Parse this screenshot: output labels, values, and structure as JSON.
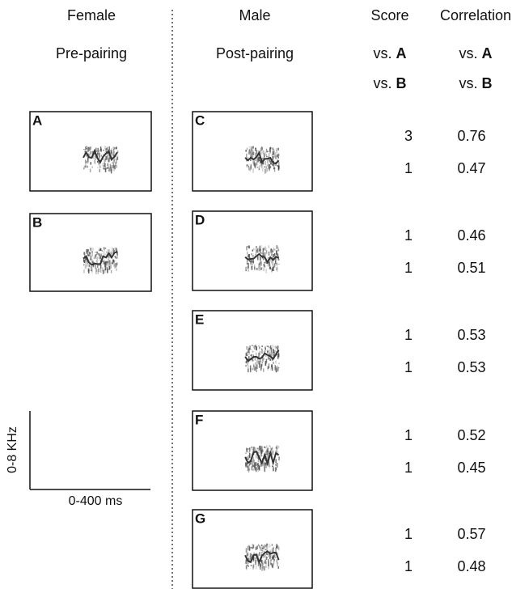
{
  "columns": {
    "female": {
      "title": "Female",
      "subtitle": "Pre-pairing"
    },
    "male": {
      "title": "Male",
      "subtitle": "Post-pairing"
    },
    "score": {
      "title": "Score",
      "rows": [
        {
          "prefix": "vs.",
          "target": "A"
        },
        {
          "prefix": "vs.",
          "target": "B"
        }
      ]
    },
    "correlation": {
      "title": "Correlation",
      "rows": [
        {
          "prefix": "vs.",
          "target": "A"
        },
        {
          "prefix": "vs.",
          "target": "B"
        }
      ]
    }
  },
  "female_panels": [
    {
      "label": "A"
    },
    {
      "label": "B"
    }
  ],
  "male_panels": [
    {
      "label": "C",
      "score_vs_a": 3,
      "score_vs_b": 1,
      "correlation_vs_a": 0.76,
      "correlation_vs_b": 0.47
    },
    {
      "label": "D",
      "score_vs_a": 1,
      "score_vs_b": 1,
      "correlation_vs_a": 0.46,
      "correlation_vs_b": 0.51
    },
    {
      "label": "E",
      "score_vs_a": 1,
      "score_vs_b": 1,
      "correlation_vs_a": 0.53,
      "correlation_vs_b": 0.53
    },
    {
      "label": "F",
      "score_vs_a": 1,
      "score_vs_b": 1,
      "correlation_vs_a": 0.52,
      "correlation_vs_b": 0.45
    },
    {
      "label": "G",
      "score_vs_a": 1,
      "score_vs_b": 1,
      "correlation_vs_a": 0.57,
      "correlation_vs_b": 0.48
    }
  ],
  "scale_bar": {
    "y_label": "0-8 KHz",
    "x_label": "0-400 ms"
  }
}
